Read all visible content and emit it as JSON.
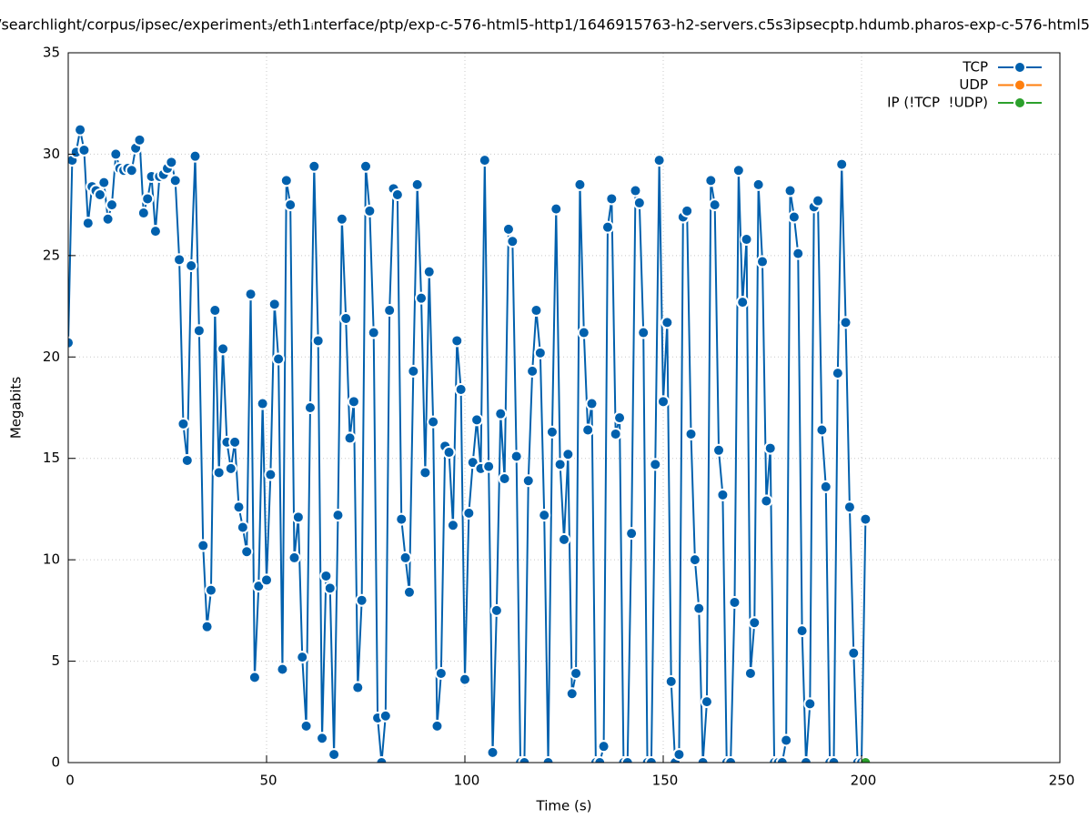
{
  "chart_data": {
    "type": "line",
    "title": "/searchlight/corpus/ipsec/experiment₃/eth1ᵢnterface/ptp/exp-c-576-html5-http1/1646915763-h2-servers.c5s3ipsecptp.hdumb.pharos-exp-c-576-html5",
    "x_label": "Time (s)",
    "y_label": "Megabits",
    "xlim": [
      0,
      250
    ],
    "xticks": [
      0,
      50,
      100,
      150,
      200,
      250
    ],
    "ylim": [
      0,
      35
    ],
    "yticks": [
      0,
      5,
      10,
      15,
      20,
      25,
      30,
      35
    ],
    "grid": true,
    "legend": "top-right",
    "series": [
      {
        "name": "TCP",
        "color": "#0060ad",
        "x": [
          0,
          1,
          2,
          3,
          4,
          5,
          6,
          7,
          8,
          9,
          10,
          11,
          12,
          13,
          14,
          15,
          16,
          17,
          18,
          19,
          20,
          21,
          22,
          23,
          24,
          25,
          26,
          27,
          28,
          29,
          30,
          31,
          32,
          33,
          34,
          35,
          36,
          37,
          38,
          39,
          40,
          41,
          42,
          43,
          44,
          45,
          46,
          47,
          48,
          49,
          50,
          51,
          52,
          53,
          54,
          55,
          56,
          57,
          58,
          59,
          60,
          61,
          62,
          63,
          64,
          65,
          66,
          67,
          68,
          69,
          70,
          71,
          72,
          73,
          74,
          75,
          76,
          77,
          78,
          79,
          80,
          81,
          82,
          83,
          84,
          85,
          86,
          87,
          88,
          89,
          90,
          91,
          92,
          93,
          94,
          95,
          96,
          97,
          98,
          99,
          100,
          101,
          102,
          103,
          104,
          105,
          106,
          107,
          108,
          109,
          110,
          111,
          112,
          113,
          114,
          115,
          116,
          117,
          118,
          119,
          120,
          121,
          122,
          123,
          124,
          125,
          126,
          127,
          128,
          129,
          130,
          131,
          132,
          133,
          134,
          135,
          136,
          137,
          138,
          139,
          140,
          141,
          142,
          143,
          144,
          145,
          146,
          147,
          148,
          149,
          150,
          151,
          152,
          153,
          154,
          155,
          156,
          157,
          158,
          159,
          160,
          161,
          162,
          163,
          164,
          165,
          166,
          167,
          168,
          169,
          170,
          171,
          172,
          173,
          174,
          175,
          176,
          177,
          178,
          179,
          180,
          181,
          182,
          183,
          184,
          185,
          186,
          187,
          188,
          189,
          190,
          191,
          192,
          193,
          194,
          195,
          196,
          197,
          198,
          199,
          200,
          201
        ],
        "values": [
          20.7,
          29.7,
          30.1,
          31.2,
          30.2,
          26.6,
          28.4,
          28.2,
          28.0,
          28.6,
          26.8,
          27.5,
          30.0,
          29.3,
          29.2,
          29.3,
          29.2,
          30.3,
          30.7,
          27.1,
          27.8,
          28.9,
          26.2,
          28.9,
          29.0,
          29.3,
          29.6,
          28.7,
          24.8,
          16.7,
          14.9,
          24.5,
          29.9,
          21.3,
          10.7,
          6.7,
          8.5,
          22.3,
          14.3,
          20.4,
          15.8,
          14.5,
          15.8,
          12.6,
          11.6,
          10.4,
          23.1,
          4.2,
          8.7,
          17.7,
          9.0,
          14.2,
          22.6,
          19.9,
          4.6,
          28.7,
          27.5,
          10.1,
          12.1,
          5.2,
          1.8,
          17.5,
          29.4,
          20.8,
          1.2,
          9.2,
          8.6,
          0.4,
          12.2,
          26.8,
          21.9,
          16.0,
          17.8,
          3.7,
          8.0,
          29.4,
          27.2,
          21.2,
          2.2,
          0,
          2.3,
          22.3,
          28.3,
          28.0,
          12.0,
          10.1,
          8.4,
          19.3,
          28.5,
          22.9,
          14.3,
          24.2,
          16.8,
          1.8,
          4.4,
          15.6,
          15.3,
          11.7,
          20.8,
          18.4,
          4.1,
          12.3,
          14.8,
          16.9,
          14.5,
          29.7,
          14.6,
          0.5,
          7.5,
          17.2,
          14.0,
          26.3,
          25.7,
          15.1,
          0,
          0,
          13.9,
          19.3,
          22.3,
          20.2,
          12.2,
          0,
          16.3,
          27.3,
          14.7,
          11.0,
          15.2,
          3.4,
          4.4,
          28.5,
          21.2,
          16.4,
          17.7,
          0,
          0,
          0.8,
          26.4,
          27.8,
          16.2,
          17.0,
          0,
          0,
          11.3,
          28.2,
          27.6,
          21.2,
          0,
          0,
          14.7,
          29.7,
          17.8,
          21.7,
          4.0,
          0,
          0.4,
          26.9,
          27.2,
          16.2,
          10.0,
          7.6,
          0,
          3.0,
          28.7,
          27.5,
          15.4,
          13.2,
          0,
          0,
          7.9,
          29.2,
          22.7,
          25.8,
          4.4,
          6.9,
          28.5,
          24.7,
          12.9,
          15.5,
          0,
          0,
          0,
          1.1,
          28.2,
          26.9,
          25.1,
          6.5,
          0,
          2.9,
          27.4,
          27.7,
          16.4,
          13.6,
          0,
          0,
          19.2,
          29.5,
          21.7,
          12.6,
          5.4,
          0,
          0,
          12.0
        ]
      },
      {
        "name": "UDP",
        "color": "#ff7f0e",
        "x": [],
        "values": []
      },
      {
        "name": "IP (!TCP  !UDP)",
        "color": "#2ca02c",
        "x": [
          201
        ],
        "values": [
          0
        ]
      }
    ]
  }
}
